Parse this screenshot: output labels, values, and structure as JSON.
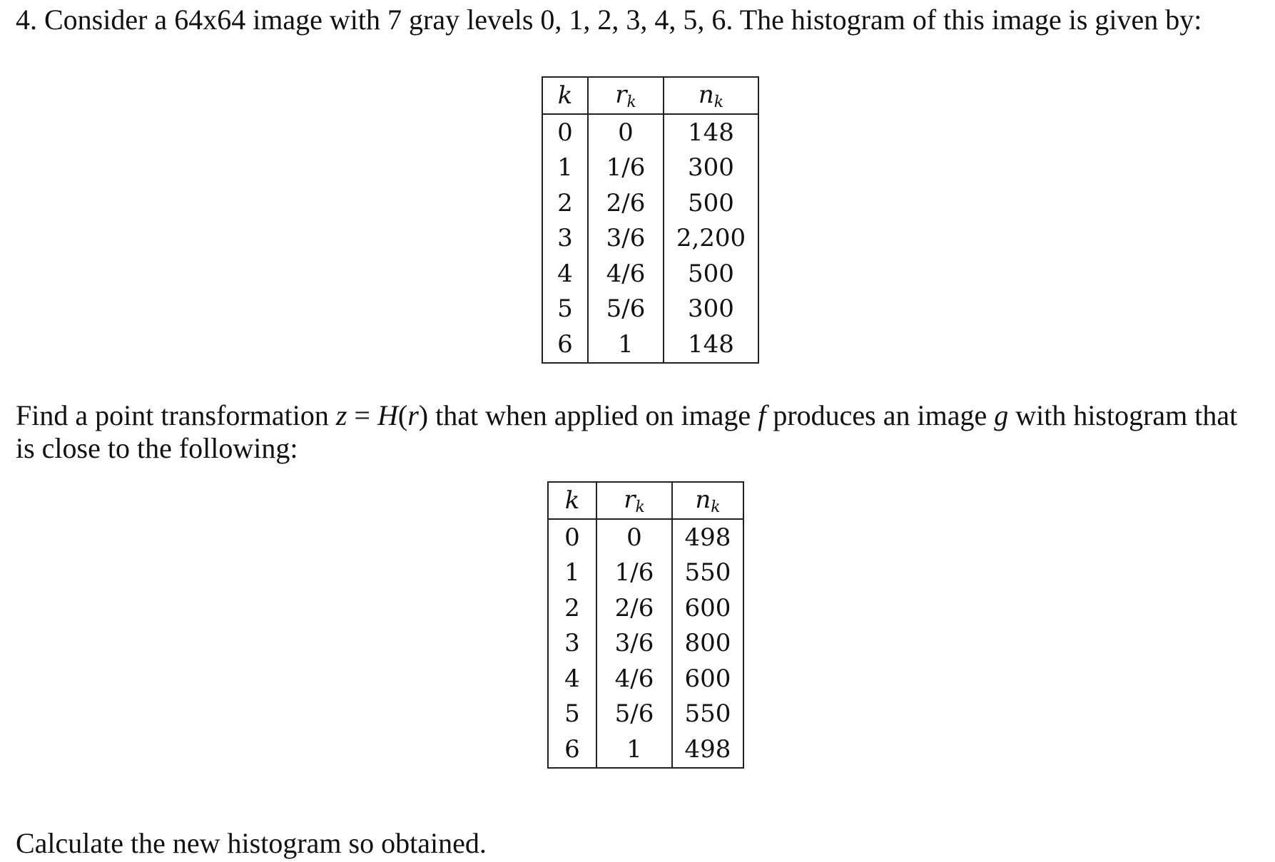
{
  "intro": "4. Consider a 64x64 image with 7 gray levels 0, 1, 2, 3, 4, 5, 6. The histogram of this image is given by:",
  "task": {
    "part1": "Find a point transformation ",
    "z": "z",
    "eq": " = ",
    "H": "H",
    "paren_open": "(",
    "r": "r",
    "paren_close": ")",
    "part2": " that when applied on image ",
    "f": "f",
    "part3": " produces an image ",
    "g": "g",
    "part4": " with histogram that is close to the following:"
  },
  "closing": "Calculate the new histogram so obtained.",
  "table_headers": {
    "k": "k",
    "r": "r",
    "r_sub": "k",
    "n": "n",
    "n_sub": "k"
  },
  "original_histogram": {
    "rows": [
      {
        "k": "0",
        "r": "0",
        "n": "148"
      },
      {
        "k": "1",
        "r": "1/6",
        "n": "300"
      },
      {
        "k": "2",
        "r": "2/6",
        "n": "500"
      },
      {
        "k": "3",
        "r": "3/6",
        "n": "2,200"
      },
      {
        "k": "4",
        "r": "4/6",
        "n": "500"
      },
      {
        "k": "5",
        "r": "5/6",
        "n": "300"
      },
      {
        "k": "6",
        "r": "1",
        "n": "148"
      }
    ]
  },
  "target_histogram": {
    "rows": [
      {
        "k": "0",
        "r": "0",
        "n": "498"
      },
      {
        "k": "1",
        "r": "1/6",
        "n": "550"
      },
      {
        "k": "2",
        "r": "2/6",
        "n": "600"
      },
      {
        "k": "3",
        "r": "3/6",
        "n": "800"
      },
      {
        "k": "4",
        "r": "4/6",
        "n": "600"
      },
      {
        "k": "5",
        "r": "5/6",
        "n": "550"
      },
      {
        "k": "6",
        "r": "1",
        "n": "498"
      }
    ]
  }
}
